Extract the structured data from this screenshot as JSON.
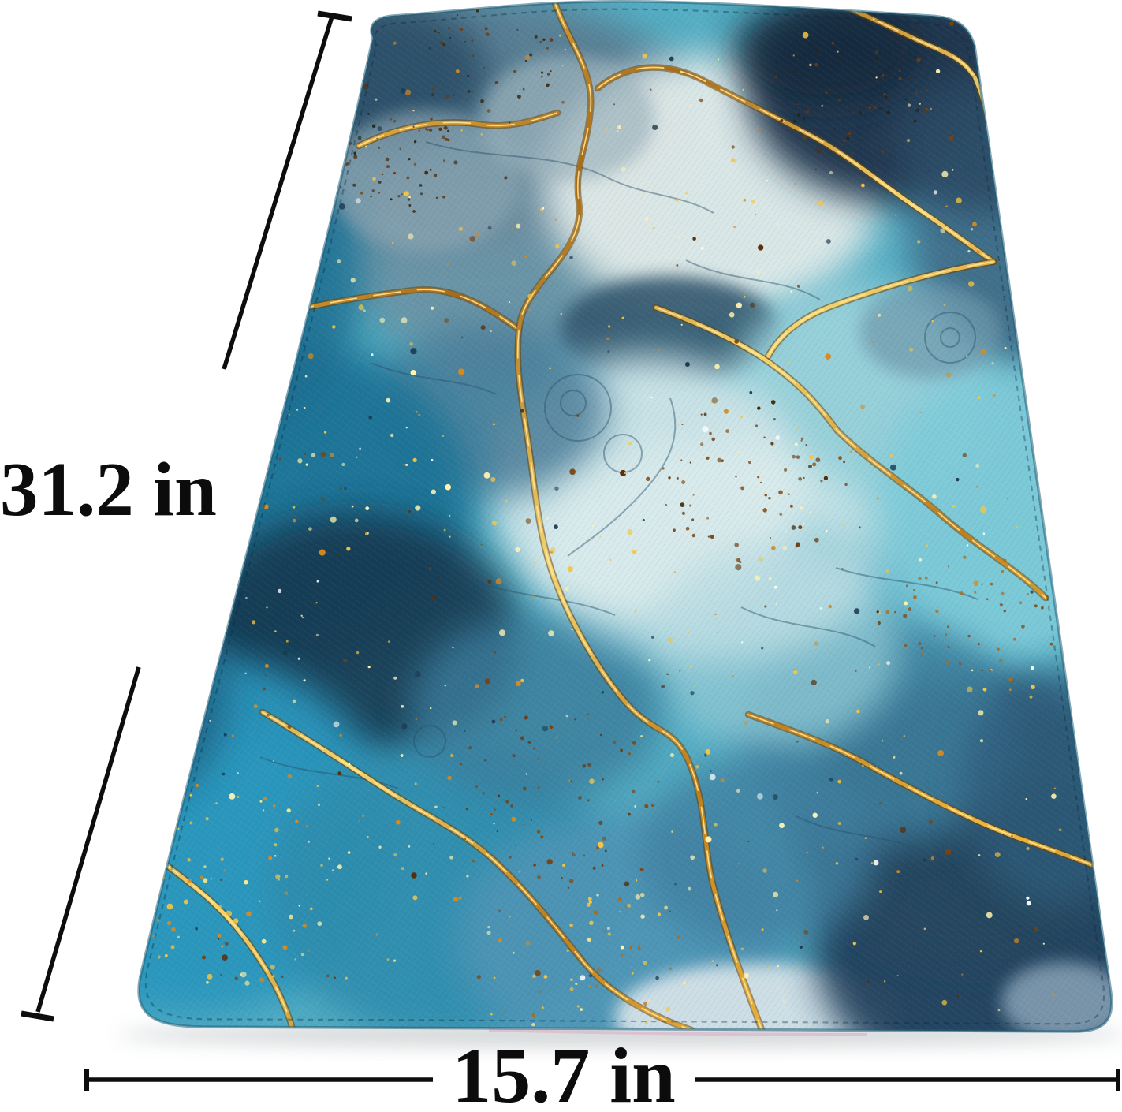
{
  "description": "Teal and navy marble-pattern mat photographed at an angle on white, with gold kintsugi veins and gold glitter, annotated with size dimension arrows",
  "annotations": {
    "height_label": "31.2 in",
    "width_label": "15.7 in"
  },
  "colors": {
    "background": "#ffffff",
    "dimension_lines": "#0d0d0d",
    "label_text": "#0c0c0c",
    "mat_base_teal": "#55aec4",
    "mat_deep_teal": "#1f7396",
    "mat_bright_azure": "#2a96bd",
    "mat_navy": "#1f3850",
    "mat_slate": "#5a7d92",
    "mat_pale_cyan": "#cfe5e8",
    "gold_vein": "#e8b73c",
    "gold_vein_dark": "#6e4208",
    "gold_vein_light": "#ffe9a0",
    "glitter_pale": "#fff3b0",
    "glitter_gold": "#f5c542",
    "glitter_orange": "#d98a1f",
    "glitter_brown": "#7a4210",
    "glitter_deep_brown": "#5a2d08",
    "glitter_white": "#ffffff",
    "glitter_navy": "#1d3a52",
    "ink_line": "#2b4f6b",
    "edge_rim": "#20607a",
    "edge_binding_pink": "#dca6c2"
  }
}
